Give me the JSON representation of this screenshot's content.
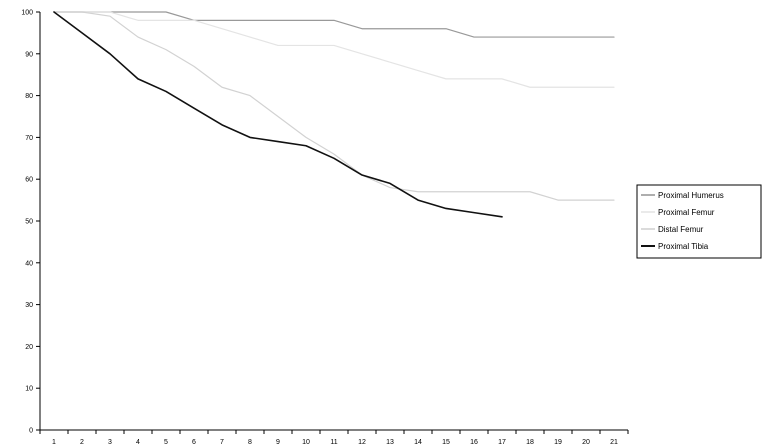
{
  "chart_data": {
    "type": "line",
    "title": "",
    "xlabel": "",
    "ylabel": "",
    "ylim": [
      0,
      100
    ],
    "yticks": [
      0,
      10,
      20,
      30,
      40,
      50,
      60,
      70,
      80,
      90,
      100
    ],
    "ytick_labels": [
      "0",
      "10",
      "20",
      "30",
      "40",
      "50",
      "60",
      "70",
      "80",
      "90",
      "100"
    ],
    "categories": [
      "1",
      "2",
      "3",
      "4",
      "5",
      "6",
      "7",
      "8",
      "9",
      "10",
      "11",
      "12",
      "13",
      "14",
      "15",
      "16",
      "17",
      "18",
      "19",
      "20",
      "21"
    ],
    "grid": false,
    "legend_position": "right",
    "series": [
      {
        "name": "Proximal Humerus",
        "color": "#999999",
        "width": 1.2,
        "values": [
          100,
          100,
          100,
          100,
          100,
          98,
          98,
          98,
          98,
          98,
          98,
          96,
          96,
          96,
          96,
          94,
          94,
          94,
          94,
          94,
          94
        ]
      },
      {
        "name": "Proximal Femur",
        "color": "#e4e4e4",
        "width": 1.2,
        "values": [
          100,
          100,
          100,
          98,
          98,
          98,
          96,
          94,
          92,
          92,
          92,
          90,
          88,
          86,
          84,
          84,
          84,
          82,
          82,
          82,
          82
        ]
      },
      {
        "name": "Distal Femur",
        "color": "#d2d2d2",
        "width": 1.2,
        "values": [
          100,
          100,
          99,
          94,
          91,
          87,
          82,
          80,
          75,
          70,
          66,
          61,
          58,
          57,
          57,
          57,
          57,
          57,
          55,
          55,
          55
        ]
      },
      {
        "name": "Proximal Tibia",
        "color": "#111111",
        "width": 1.6,
        "values": [
          100,
          95,
          90,
          84,
          81,
          77,
          73,
          70,
          69,
          68,
          65,
          61,
          59,
          55,
          53,
          52,
          51,
          null,
          null,
          null,
          null
        ]
      }
    ]
  }
}
